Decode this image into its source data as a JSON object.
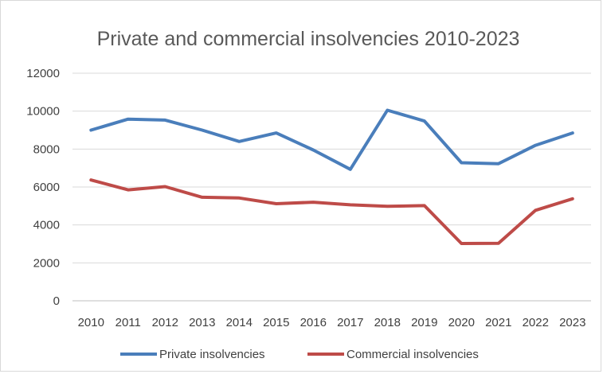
{
  "chart_data": {
    "type": "line",
    "title": "Private and commercial insolvencies 2010-2023",
    "xlabel": "",
    "ylabel": "",
    "categories": [
      "2010",
      "2011",
      "2012",
      "2013",
      "2014",
      "2015",
      "2016",
      "2017",
      "2018",
      "2019",
      "2020",
      "2021",
      "2022",
      "2023"
    ],
    "ylim": [
      0,
      12000
    ],
    "yticks": [
      0,
      2000,
      4000,
      6000,
      8000,
      10000,
      12000
    ],
    "grid": true,
    "legend_position": "bottom",
    "series": [
      {
        "name": "Private insolvencies",
        "color": "#4a7ebb",
        "values": [
          9000,
          9580,
          9530,
          9000,
          8400,
          8850,
          7950,
          6930,
          10050,
          9480,
          7280,
          7230,
          8200,
          8850
        ]
      },
      {
        "name": "Commercial insolvencies",
        "color": "#be4b48",
        "values": [
          6370,
          5850,
          6020,
          5460,
          5420,
          5120,
          5200,
          5060,
          4980,
          5020,
          3020,
          3030,
          4770,
          5380
        ]
      }
    ]
  }
}
